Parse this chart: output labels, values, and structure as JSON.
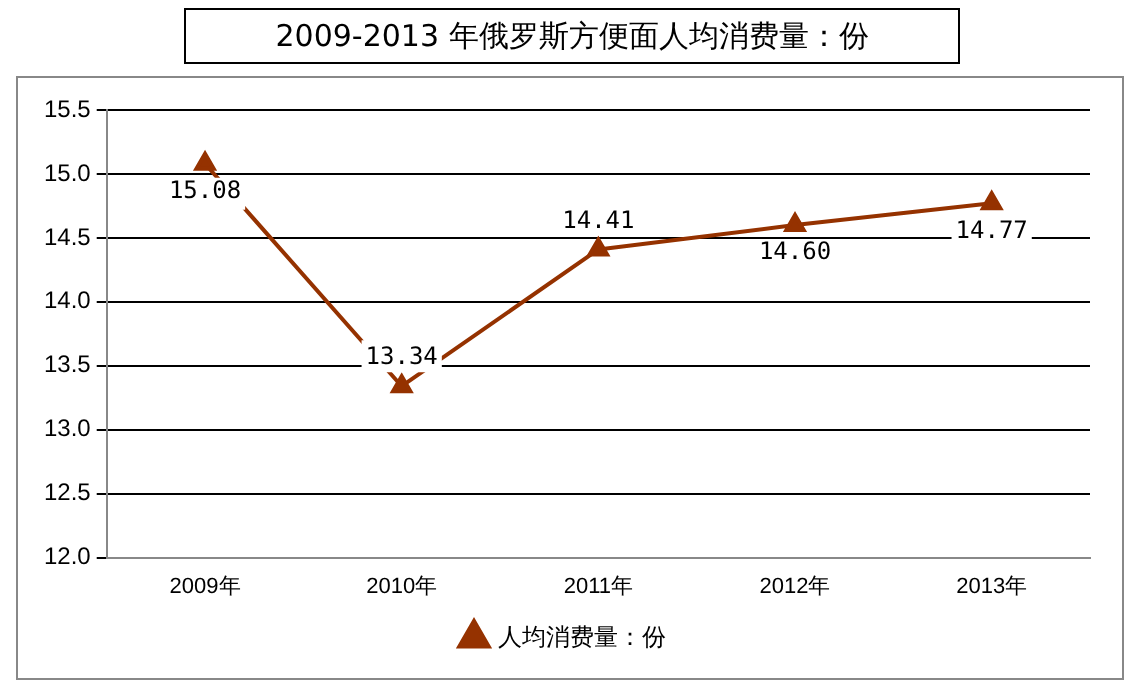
{
  "chart_data": {
    "type": "line",
    "title": "2009-2013 年俄罗斯方便面人均消费量：份",
    "categories": [
      "2009年",
      "2010年",
      "2011年",
      "2012年",
      "2013年"
    ],
    "series": [
      {
        "name": "人均消费量：份",
        "color": "#953200",
        "values": [
          15.08,
          13.34,
          14.41,
          14.6,
          14.77
        ],
        "value_labels": [
          "15.08",
          "13.34",
          "14.41",
          "14.60",
          "14.77"
        ]
      }
    ],
    "ylim": [
      12,
      15.5
    ],
    "yticks": [
      {
        "value": 12,
        "label": "12.0"
      },
      12.5,
      {
        "value": 13,
        "label": "13.0"
      },
      13.5,
      {
        "value": 14,
        "label": "14.0"
      },
      14.5,
      {
        "value": 15,
        "label": "15.0"
      },
      15.5
    ],
    "grid": "y",
    "legend": "bottom",
    "marker": "triangle",
    "line_style": "solid"
  }
}
